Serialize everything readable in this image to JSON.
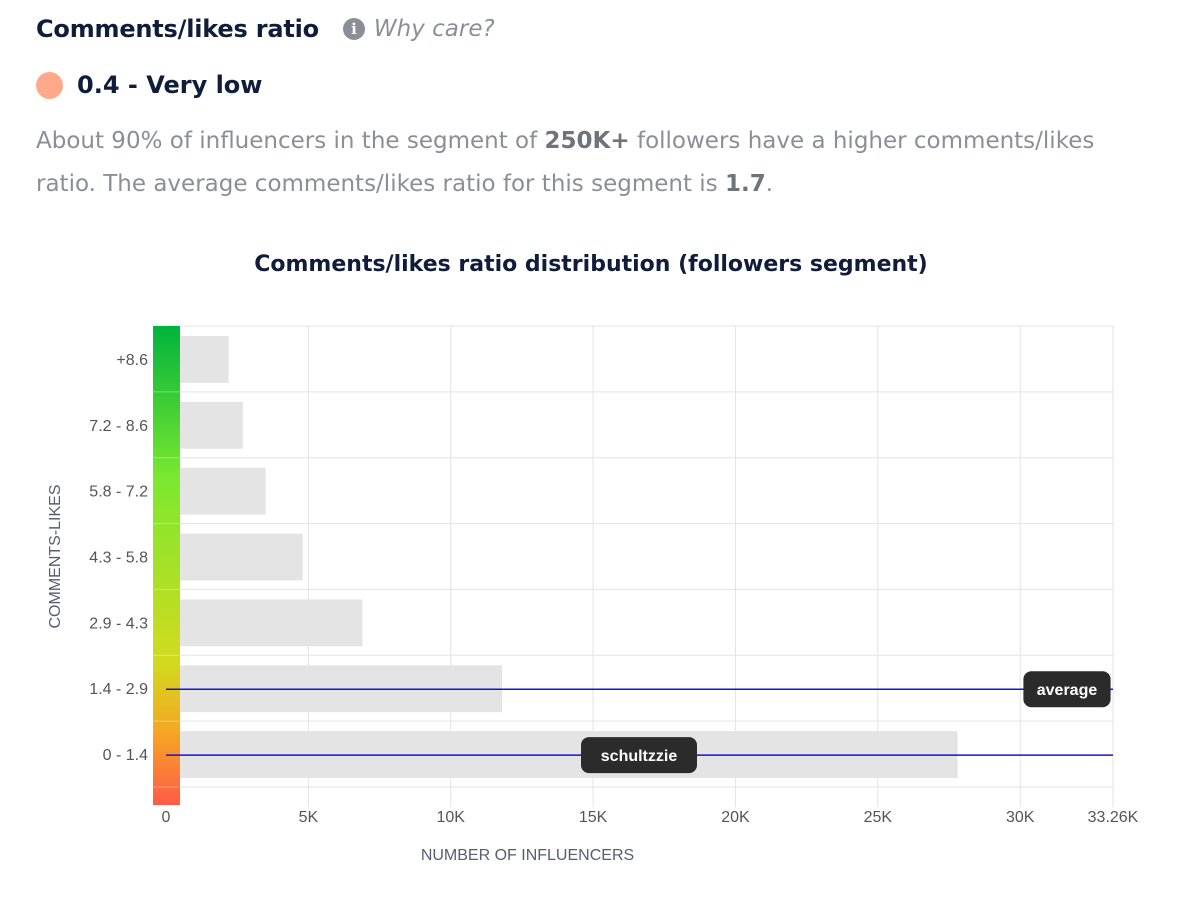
{
  "header": {
    "title": "Comments/likes ratio",
    "info_icon": "info-icon",
    "why_care": "Why care?"
  },
  "score": {
    "dot_color": "#ffa88a",
    "label": "0.4 - Very low"
  },
  "description": {
    "text_1": "About 90% of influencers in the segment of ",
    "segment": "250K+",
    "text_2": " followers have a higher comments/likes ratio. The average comments/likes ratio for this segment is ",
    "average": "1.7",
    "text_3": "."
  },
  "chart_data": {
    "type": "bar",
    "orientation": "horizontal",
    "title": "Comments/likes ratio distribution (followers segment)",
    "xlabel": "NUMBER OF INFLUENCERS",
    "ylabel": "COMMENTS-LIKES",
    "categories": [
      "+8.6",
      "7.2 - 8.6",
      "5.8 - 7.2",
      "4.3 - 5.8",
      "2.9 - 4.3",
      "1.4 - 2.9",
      "0 - 1.4"
    ],
    "values": [
      2200,
      2700,
      3500,
      4800,
      6900,
      11800,
      27800
    ],
    "xlim": [
      0,
      33260
    ],
    "x_ticks": [
      0,
      5000,
      10000,
      15000,
      20000,
      25000,
      30000,
      33260
    ],
    "x_tick_labels": [
      "0",
      "5K",
      "10K",
      "15K",
      "20K",
      "25K",
      "30K",
      "33.26K"
    ],
    "grid": true,
    "bar_color": "#e4e4e4",
    "color_scale": [
      "#00b33c",
      "#7ce82f",
      "#d2da1e",
      "#f5a623",
      "#ff5a49"
    ],
    "markers": [
      {
        "label": "average",
        "category": "1.4 - 2.9",
        "color": "#1515d1"
      },
      {
        "label": "schultzzie",
        "category": "0 - 1.4",
        "color": "#1515d1"
      }
    ]
  }
}
